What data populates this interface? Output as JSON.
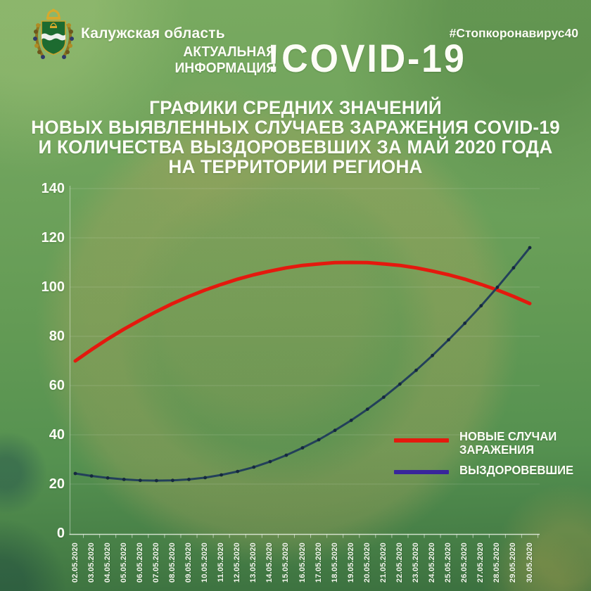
{
  "header": {
    "region": "Калужская область",
    "hashtag": "#Стопкоронавирус40",
    "info_line1": "АКТУАЛЬНАЯ",
    "info_line2": "ИНФОРМАЦИЯ",
    "covid_label": "!COVID-19"
  },
  "title": {
    "line1": "ГРАФИКИ СРЕДНИХ ЗНАЧЕНИЙ",
    "line2": "НОВЫХ ВЫЯВЛЕННЫХ СЛУЧАЕВ ЗАРАЖЕНИЯ COVID-19",
    "line3": "И КОЛИЧЕСТВА ВЫЗДОРОВЕВШИХ ЗА МАЙ 2020 ГОДА",
    "line4": "НА ТЕРРИТОРИИ РЕГИОНА"
  },
  "legend": {
    "items": [
      {
        "lines": [
          "НОВЫЕ СЛУЧАИ",
          "ЗАРАЖЕНИЯ"
        ],
        "color": "#e4190e"
      },
      {
        "lines": [
          "ВЫЗДОРОВЕВШИЕ"
        ],
        "color": "#38269b"
      }
    ]
  },
  "chart_data": {
    "type": "line",
    "title": "Средние значения новых случаев заражения COVID-19 и выздоровевших, май 2020",
    "xlabel": "",
    "ylabel": "",
    "ylim": [
      0,
      140
    ],
    "y_ticks": [
      0,
      20,
      40,
      60,
      80,
      100,
      120,
      140
    ],
    "grid": true,
    "legend_position": "right-middle",
    "categories": [
      "02.05.2020",
      "03.05.2020",
      "04.05.2020",
      "05.05.2020",
      "06.05.2020",
      "07.05.2020",
      "08.05.2020",
      "09.05.2020",
      "10.05.2020",
      "11.05.2020",
      "12.05.2020",
      "13.05.2020",
      "14.05.2020",
      "15.05.2020",
      "16.05.2020",
      "17.05.2020",
      "18.05.2020",
      "19.05.2020",
      "20.05.2020",
      "21.05.2020",
      "22.05.2020",
      "23.05.2020",
      "24.05.2020",
      "25.05.2020",
      "26.05.2020",
      "27.05.2020",
      "28.05.2020",
      "29.05.2020",
      "30.05.2020"
    ],
    "series": [
      {
        "name": "НОВЫЕ СЛУЧАИ ЗАРАЖЕНИЯ",
        "color": "#e4190e",
        "line_width": 5,
        "markers": false,
        "values": [
          70,
          74.6,
          78.9,
          82.9,
          86.6,
          90.1,
          93.3,
          96.2,
          98.8,
          101.1,
          103.2,
          105,
          106.5,
          107.8,
          108.8,
          109.4,
          109.9,
          110,
          109.9,
          109.4,
          108.8,
          107.8,
          106.5,
          105,
          103.2,
          101.1,
          98.8,
          96.2,
          93.3
        ]
      },
      {
        "name": "ВЫЗДОРОВЕВШИЕ",
        "color": "#23405a",
        "marker_color": "#15283f",
        "swatch_color": "#38269b",
        "line_width": 3,
        "markers": true,
        "values": [
          24.3,
          23.3,
          22.5,
          21.9,
          21.5,
          21.4,
          21.5,
          21.9,
          22.6,
          23.7,
          25.1,
          26.9,
          29.1,
          31.7,
          34.7,
          38,
          41.8,
          45.9,
          50.4,
          55.3,
          60.6,
          66.2,
          72.2,
          78.6,
          85.3,
          92.4,
          99.9,
          107.8,
          116
        ]
      }
    ]
  }
}
